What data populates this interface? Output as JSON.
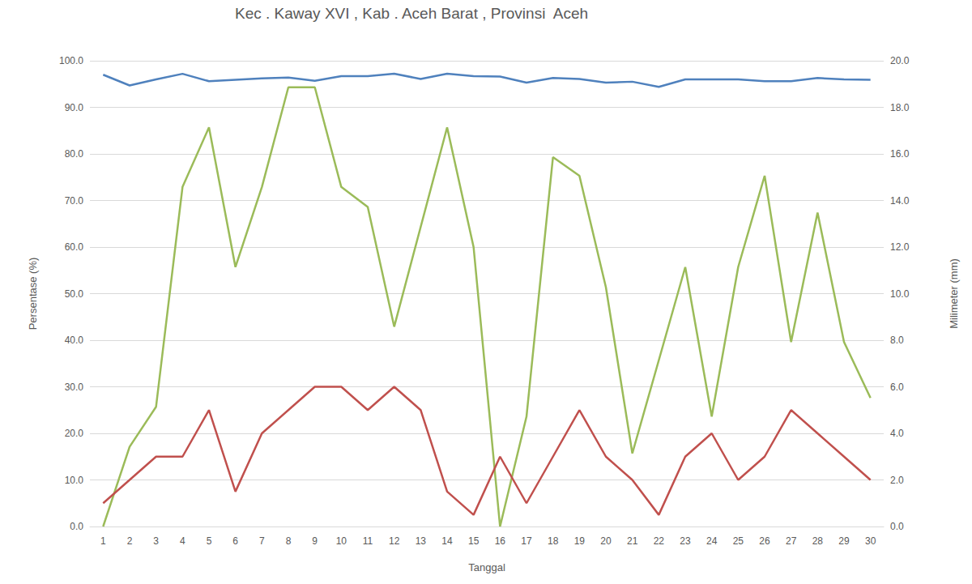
{
  "chart_data": {
    "type": "line",
    "title": "Kec . Kaway XVI , Kab . Aceh Barat , Provinsi  Aceh",
    "x_label": "Tanggal",
    "y_label": "Persentase (%)",
    "y2_label": "Milimeter (mm)",
    "categories": [
      "1",
      "2",
      "3",
      "4",
      "5",
      "6",
      "7",
      "8",
      "9",
      "10",
      "11",
      "12",
      "13",
      "14",
      "15",
      "16",
      "17",
      "18",
      "19",
      "20",
      "21",
      "22",
      "23",
      "24",
      "25",
      "26",
      "27",
      "28",
      "29",
      "30"
    ],
    "series": [
      {
        "color": "#4f81bd",
        "axis": "y",
        "values": [
          97.0,
          94.7,
          96.0,
          97.2,
          95.6,
          95.9,
          96.2,
          96.4,
          95.7,
          96.7,
          96.7,
          97.2,
          96.1,
          97.2,
          96.7,
          96.6,
          95.3,
          96.3,
          96.1,
          95.3,
          95.5,
          94.4,
          96.0,
          96.0,
          96.0,
          95.6,
          95.6,
          96.3,
          96.0,
          95.9
        ]
      },
      {
        "color": "#9bbb59",
        "axis": "y",
        "values": [
          0.0,
          17.1,
          25.7,
          72.9,
          85.7,
          55.7,
          72.9,
          94.3,
          94.3,
          72.9,
          68.6,
          42.9,
          64.3,
          85.7,
          60.0,
          0.0,
          23.6,
          79.3,
          75.3,
          51.4,
          15.7,
          35.7,
          55.7,
          23.6,
          55.7,
          75.3,
          39.6,
          67.4,
          39.6,
          27.6
        ]
      },
      {
        "color": "#c0504d",
        "axis": "y2",
        "values": [
          1.0,
          2.0,
          3.0,
          3.0,
          5.0,
          1.5,
          4.0,
          5.0,
          6.0,
          6.0,
          5.0,
          6.0,
          5.0,
          1.5,
          0.5,
          3.0,
          1.0,
          3.0,
          5.0,
          3.0,
          2.0,
          0.5,
          3.0,
          4.0,
          2.0,
          3.0,
          5.0,
          4.0,
          3.0,
          2.0
        ]
      }
    ],
    "ylim": [
      0,
      100
    ],
    "yticks": [
      {
        "value": 0,
        "label": "0.0"
      },
      {
        "value": 10,
        "label": "10.0"
      },
      {
        "value": 20,
        "label": "20.0"
      },
      {
        "value": 30,
        "label": "30.0"
      },
      {
        "value": 40,
        "label": "40.0"
      },
      {
        "value": 50,
        "label": "50.0"
      },
      {
        "value": 60,
        "label": "60.0"
      },
      {
        "value": 70,
        "label": "70.0"
      },
      {
        "value": 80,
        "label": "80.0"
      },
      {
        "value": 90,
        "label": "90.0"
      },
      {
        "value": 100,
        "label": "100.0"
      }
    ],
    "y2lim": [
      0,
      20
    ],
    "y2ticks": [
      {
        "value": 0,
        "label": "0.0"
      },
      {
        "value": 2,
        "label": "2.0"
      },
      {
        "value": 4,
        "label": "4.0"
      },
      {
        "value": 6,
        "label": "6.0"
      },
      {
        "value": 8,
        "label": "8.0"
      },
      {
        "value": 10,
        "label": "10.0"
      },
      {
        "value": 12,
        "label": "12.0"
      },
      {
        "value": 14,
        "label": "14.0"
      },
      {
        "value": 16,
        "label": "16.0"
      },
      {
        "value": 18,
        "label": "18.0"
      },
      {
        "value": 20,
        "label": "20.0"
      }
    ],
    "grid": true
  }
}
